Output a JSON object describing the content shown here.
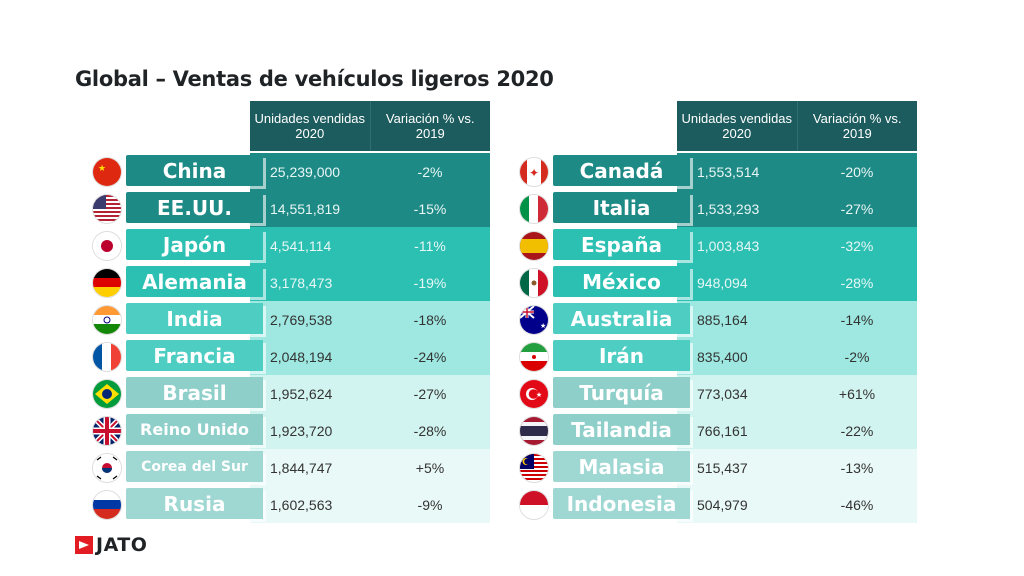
{
  "title": "Global – Ventas de vehículos ligeros 2020",
  "headers": {
    "units": "Unidades vendidas 2020",
    "variation": "Variación % vs. 2019"
  },
  "brand": "JATO",
  "colors": {
    "header": "#1d5c5e",
    "tier1_bg": "#1e8a85",
    "tier1_label": "#1e8a85",
    "tier2_bg": "#2cc0b3",
    "tier2_label": "#2cc0b3",
    "tier3_bg": "#9ee8e1",
    "tier3_label": "#4ecdc2",
    "tier4_bg": "#d2f4f0",
    "tier4_label": "#8fcfc9",
    "tier5_bg": "#e9f9f7",
    "tier5_label": "#9fd7d2"
  },
  "chart_data": {
    "type": "table",
    "title": "Global – Ventas de vehículos ligeros 2020",
    "columns": [
      "Unidades vendidas 2020",
      "Variación % vs. 2019"
    ],
    "left": [
      {
        "country": "China",
        "units": "25,239,000",
        "variation": "-2%",
        "flag": "china-flag-icon",
        "tier": 1
      },
      {
        "country": "EE.UU.",
        "units": "14,551,819",
        "variation": "-15%",
        "flag": "usa-flag-icon",
        "tier": 1
      },
      {
        "country": "Japón",
        "units": "4,541,114",
        "variation": "-11%",
        "flag": "japan-flag-icon",
        "tier": 2
      },
      {
        "country": "Alemania",
        "units": "3,178,473",
        "variation": "-19%",
        "flag": "germany-flag-icon",
        "tier": 2
      },
      {
        "country": "India",
        "units": "2,769,538",
        "variation": "-18%",
        "flag": "india-flag-icon",
        "tier": 3
      },
      {
        "country": "Francia",
        "units": "2,048,194",
        "variation": "-24%",
        "flag": "france-flag-icon",
        "tier": 3
      },
      {
        "country": "Brasil",
        "units": "1,952,624",
        "variation": "-27%",
        "flag": "brazil-flag-icon",
        "tier": 4
      },
      {
        "country": "Reino Unido",
        "units": "1,923,720",
        "variation": "-28%",
        "flag": "uk-flag-icon",
        "tier": 4
      },
      {
        "country": "Corea del Sur",
        "units": "1,844,747",
        "variation": "+5%",
        "flag": "south-korea-flag-icon",
        "tier": 5
      },
      {
        "country": "Rusia",
        "units": "1,602,563",
        "variation": "-9%",
        "flag": "russia-flag-icon",
        "tier": 5
      }
    ],
    "right": [
      {
        "country": "Canadá",
        "units": "1,553,514",
        "variation": "-20%",
        "flag": "canada-flag-icon",
        "tier": 1
      },
      {
        "country": "Italia",
        "units": "1,533,293",
        "variation": "-27%",
        "flag": "italy-flag-icon",
        "tier": 1
      },
      {
        "country": "España",
        "units": "1,003,843",
        "variation": "-32%",
        "flag": "spain-flag-icon",
        "tier": 2
      },
      {
        "country": "México",
        "units": "948,094",
        "variation": "-28%",
        "flag": "mexico-flag-icon",
        "tier": 2
      },
      {
        "country": "Australia",
        "units": "885,164",
        "variation": "-14%",
        "flag": "australia-flag-icon",
        "tier": 3
      },
      {
        "country": "Irán",
        "units": "835,400",
        "variation": "-2%",
        "flag": "iran-flag-icon",
        "tier": 3
      },
      {
        "country": "Turquía",
        "units": "773,034",
        "variation": "+61%",
        "flag": "turkey-flag-icon",
        "tier": 4
      },
      {
        "country": "Tailandia",
        "units": "766,161",
        "variation": "-22%",
        "flag": "thailand-flag-icon",
        "tier": 4
      },
      {
        "country": "Malasia",
        "units": "515,437",
        "variation": "-13%",
        "flag": "malaysia-flag-icon",
        "tier": 5
      },
      {
        "country": "Indonesia",
        "units": "504,979",
        "variation": "-46%",
        "flag": "indonesia-flag-icon",
        "tier": 5
      }
    ]
  }
}
